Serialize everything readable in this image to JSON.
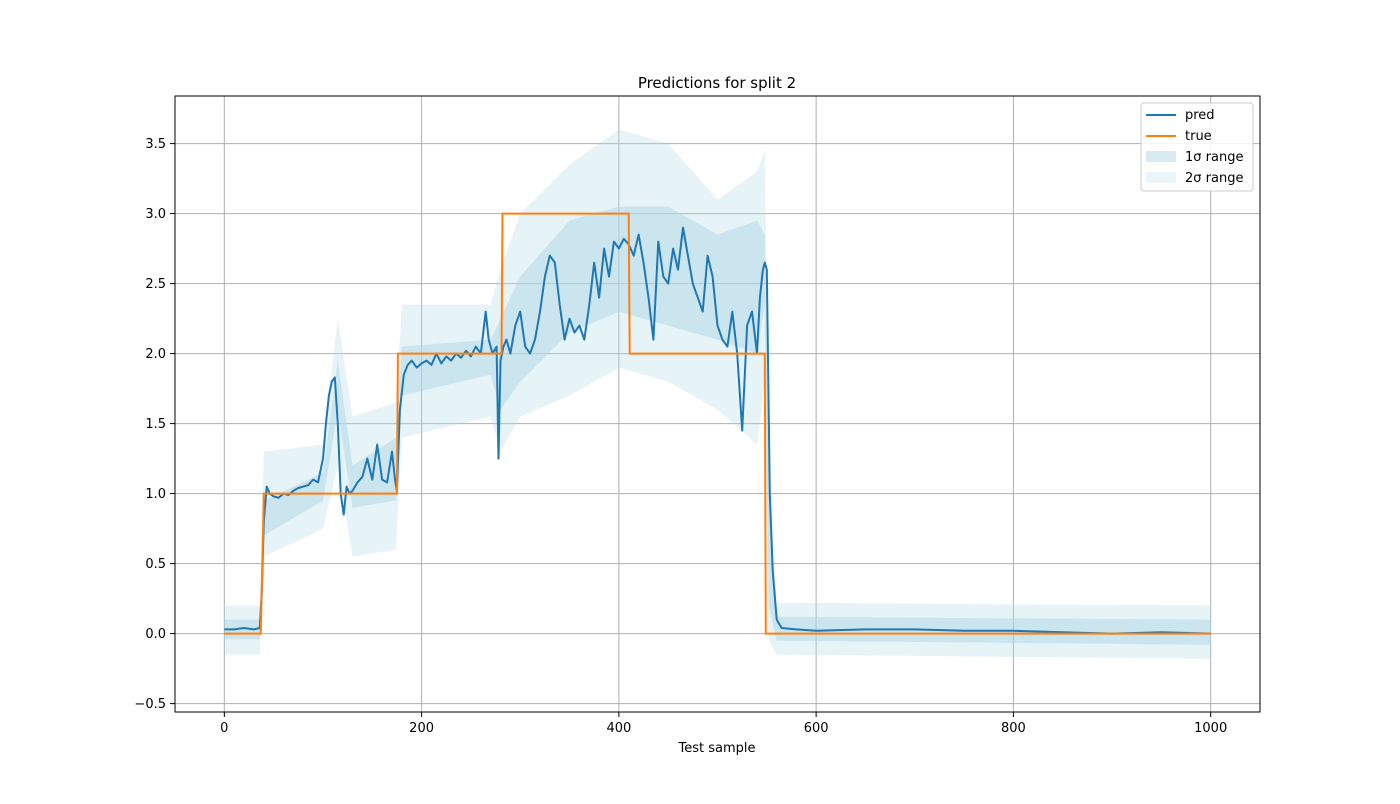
{
  "colors": {
    "pred": "#1f77b4",
    "true": "#ff7f0e",
    "band_1sigma": "#add8e6",
    "band_2sigma": "#add8e6",
    "grid": "#b0b0b0",
    "axes": "#000000"
  },
  "chart_data": {
    "type": "line",
    "title": "Predictions for split 2",
    "xlabel": "Test sample",
    "ylabel": "",
    "xlim": [
      -50,
      1050
    ],
    "ylim": [
      -0.56,
      3.84
    ],
    "xticks": [
      0,
      200,
      400,
      600,
      800,
      1000
    ],
    "xtick_labels": [
      "0",
      "200",
      "400",
      "600",
      "800",
      "1000"
    ],
    "yticks": [
      -0.5,
      0.0,
      0.5,
      1.0,
      1.5,
      2.0,
      2.5,
      3.0,
      3.5
    ],
    "ytick_labels": [
      "−0.5",
      "0.0",
      "0.5",
      "1.0",
      "1.5",
      "2.0",
      "2.5",
      "3.0",
      "3.5"
    ],
    "grid": true,
    "legend_position": "top-right",
    "legend": [
      "pred",
      "true",
      "1σ range",
      "2σ range"
    ],
    "series": [
      {
        "name": "pred",
        "x": [
          0,
          10,
          20,
          30,
          36,
          38,
          40,
          43,
          46,
          50,
          55,
          60,
          65,
          70,
          75,
          80,
          85,
          90,
          95,
          100,
          103,
          106,
          109,
          112,
          115,
          118,
          121,
          124,
          127,
          130,
          135,
          140,
          145,
          150,
          155,
          160,
          165,
          170,
          173,
          175,
          178,
          182,
          186,
          190,
          195,
          200,
          205,
          210,
          215,
          220,
          225,
          230,
          235,
          240,
          245,
          250,
          255,
          260,
          265,
          268,
          272,
          276,
          278,
          280,
          283,
          286,
          290,
          295,
          300,
          305,
          310,
          315,
          320,
          325,
          330,
          335,
          340,
          345,
          350,
          355,
          360,
          365,
          370,
          375,
          380,
          385,
          390,
          395,
          400,
          405,
          410,
          415,
          420,
          425,
          430,
          435,
          440,
          445,
          450,
          455,
          460,
          465,
          470,
          475,
          480,
          485,
          490,
          495,
          500,
          505,
          510,
          515,
          520,
          525,
          530,
          535,
          540,
          543,
          546,
          548,
          550,
          553,
          556,
          560,
          565,
          580,
          600,
          650,
          700,
          750,
          800,
          850,
          900,
          950,
          1000
        ],
        "values": [
          0.03,
          0.03,
          0.04,
          0.03,
          0.04,
          0.3,
          0.8,
          1.05,
          1.0,
          0.98,
          0.97,
          1.0,
          0.99,
          1.02,
          1.04,
          1.05,
          1.06,
          1.1,
          1.08,
          1.25,
          1.5,
          1.7,
          1.8,
          1.83,
          1.5,
          1.0,
          0.85,
          1.05,
          1.0,
          1.02,
          1.08,
          1.12,
          1.25,
          1.1,
          1.35,
          1.1,
          1.08,
          1.3,
          1.1,
          1.02,
          1.6,
          1.85,
          1.92,
          1.95,
          1.9,
          1.93,
          1.95,
          1.92,
          2.0,
          1.93,
          1.98,
          1.95,
          2.0,
          1.97,
          2.02,
          1.98,
          2.05,
          2.0,
          2.3,
          2.1,
          2.0,
          2.05,
          1.25,
          1.95,
          2.05,
          2.1,
          2.0,
          2.2,
          2.3,
          2.05,
          2.0,
          2.1,
          2.3,
          2.55,
          2.7,
          2.65,
          2.35,
          2.1,
          2.25,
          2.15,
          2.2,
          2.1,
          2.35,
          2.65,
          2.4,
          2.75,
          2.55,
          2.8,
          2.75,
          2.82,
          2.78,
          2.7,
          2.85,
          2.65,
          2.4,
          2.1,
          2.8,
          2.55,
          2.5,
          2.75,
          2.6,
          2.9,
          2.7,
          2.5,
          2.4,
          2.3,
          2.7,
          2.55,
          2.2,
          2.1,
          2.05,
          2.3,
          2.0,
          1.45,
          2.2,
          2.3,
          2.0,
          2.4,
          2.6,
          2.65,
          2.6,
          1.0,
          0.45,
          0.1,
          0.04,
          0.03,
          0.02,
          0.03,
          0.03,
          0.02,
          0.02,
          0.01,
          0.0,
          0.01,
          0.0
        ]
      },
      {
        "name": "true",
        "x": [
          0,
          37,
          40,
          175,
          176,
          281,
          282,
          410,
          411,
          548,
          549,
          1000
        ],
        "values": [
          0,
          0,
          1,
          1,
          2,
          2,
          3,
          3,
          2,
          2,
          0,
          0
        ]
      }
    ],
    "bands": [
      {
        "name": "1σ range",
        "x": [
          0,
          36,
          40,
          100,
          115,
          130,
          174,
          180,
          270,
          280,
          300,
          350,
          400,
          450,
          500,
          540,
          548,
          552,
          560,
          1000
        ],
        "upper": [
          0.1,
          0.1,
          0.95,
          1.15,
          1.95,
          1.2,
          1.4,
          2.05,
          2.1,
          2.25,
          2.55,
          2.95,
          3.05,
          3.05,
          2.85,
          2.95,
          2.85,
          1.0,
          0.12,
          0.1
        ],
        "lower": [
          -0.04,
          -0.04,
          0.7,
          0.95,
          1.6,
          0.9,
          0.95,
          1.7,
          1.85,
          1.6,
          1.8,
          2.15,
          2.3,
          2.2,
          2.1,
          2.0,
          2.35,
          0.2,
          -0.05,
          -0.08
        ]
      },
      {
        "name": "2σ range",
        "x": [
          0,
          36,
          40,
          100,
          115,
          130,
          174,
          180,
          270,
          280,
          300,
          350,
          400,
          450,
          500,
          540,
          548,
          552,
          560,
          1000
        ],
        "upper": [
          0.2,
          0.2,
          1.3,
          1.35,
          2.25,
          1.55,
          1.65,
          2.35,
          2.35,
          2.6,
          3.0,
          3.35,
          3.6,
          3.5,
          3.1,
          3.3,
          3.45,
          1.2,
          0.22,
          0.2
        ],
        "lower": [
          -0.15,
          -0.15,
          0.55,
          0.75,
          1.2,
          0.55,
          0.6,
          1.4,
          1.55,
          1.3,
          1.55,
          1.7,
          1.9,
          1.8,
          1.6,
          1.35,
          1.8,
          -0.05,
          -0.15,
          -0.18
        ]
      }
    ]
  }
}
